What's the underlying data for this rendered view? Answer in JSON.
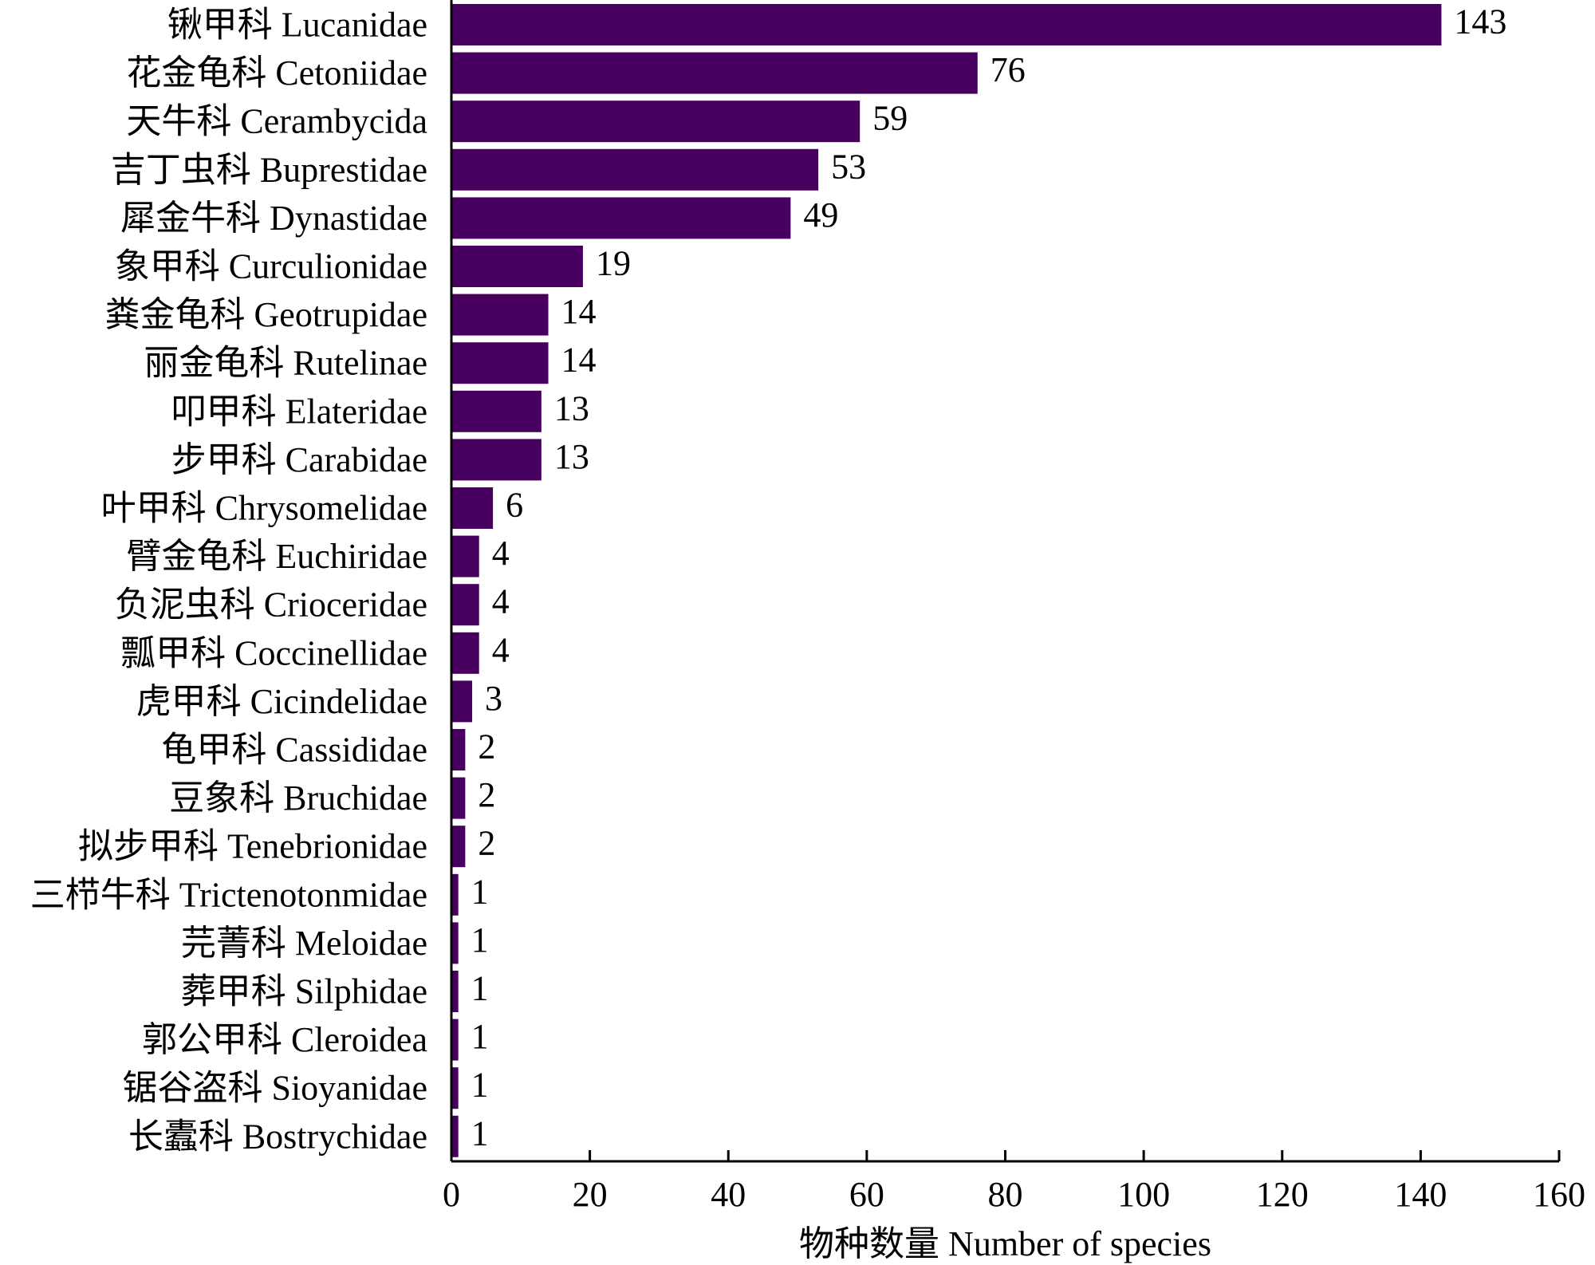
{
  "chart_data": {
    "type": "bar",
    "orientation": "horizontal",
    "categories": [
      "锹甲科 Lucanidae",
      "花金龟科 Cetoniidae",
      "天牛科 Cerambycida",
      "吉丁虫科 Buprestidae",
      "犀金牛科 Dynastidae",
      "象甲科 Curculionidae",
      "粪金龟科 Geotrupidae",
      "丽金龟科 Rutelinae",
      "叩甲科 Elateridae",
      "步甲科 Carabidae",
      "叶甲科 Chrysomelidae",
      "臂金龟科 Euchiridae",
      "负泥虫科 Crioceridae",
      "瓢甲科 Coccinellidae",
      "虎甲科 Cicindelidae",
      "龟甲科 Cassididae",
      "豆象科 Bruchidae",
      "拟步甲科 Tenebrionidae",
      "三栉牛科 Trictenotonmidae",
      "芫菁科 Meloidae",
      "葬甲科 Silphidae",
      "郭公甲科 Cleroidea",
      "锯谷盗科 Sioyanidae",
      "长蠹科 Bostrychidae"
    ],
    "values": [
      143,
      76,
      59,
      53,
      49,
      19,
      14,
      14,
      13,
      13,
      6,
      4,
      4,
      4,
      3,
      2,
      2,
      2,
      1,
      1,
      1,
      1,
      1,
      1
    ],
    "value_labels": [
      "143",
      "76",
      "59",
      "53",
      "49",
      "19",
      "14",
      "14",
      "13",
      "13",
      "6",
      "4",
      "4",
      "4",
      "3",
      "2",
      "2",
      "2",
      "1",
      "1",
      "1",
      "1",
      "1",
      "1"
    ],
    "xlabel": "物种数量 Number of species",
    "ylabel": "",
    "xlim": [
      0,
      160
    ],
    "xticks": [
      0,
      20,
      40,
      60,
      80,
      100,
      120,
      140,
      160
    ],
    "xtick_labels": [
      "0",
      "20",
      "40",
      "60",
      "80",
      "100",
      "120",
      "140",
      "160"
    ],
    "grid": false,
    "bar_color": "#47005e"
  }
}
